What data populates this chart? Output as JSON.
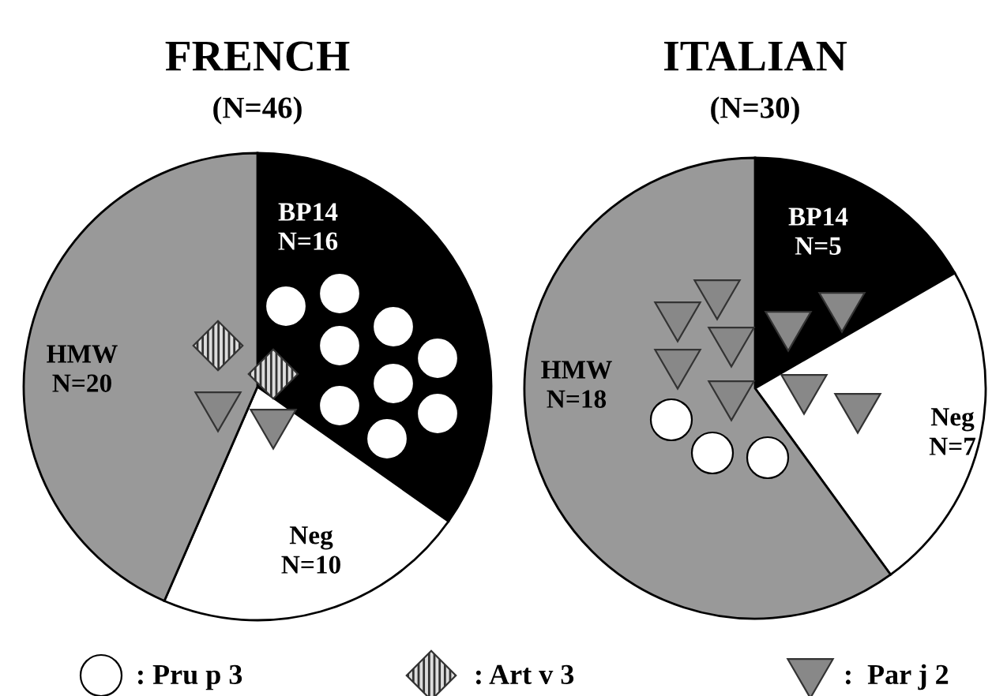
{
  "chart_data": [
    {
      "type": "pie",
      "title": "FRENCH",
      "subtitle": "(N=46)",
      "categories": [
        "BP14",
        "Neg",
        "HMW"
      ],
      "values": [
        16,
        10,
        20
      ],
      "colors": [
        "#000000",
        "#ffffff",
        "#999999"
      ],
      "value_labels": [
        "N=16",
        "N=10",
        "N=20"
      ]
    },
    {
      "type": "pie",
      "title": "ITALIAN",
      "subtitle": "(N=30)",
      "categories": [
        "BP14",
        "Neg",
        "HMW"
      ],
      "values": [
        5,
        7,
        18
      ],
      "colors": [
        "#000000",
        "#ffffff",
        "#999999"
      ],
      "value_labels": [
        "N=5",
        "N=7",
        "N=18"
      ]
    },
    {
      "type": "other",
      "annotations": [
        ": Pru p 3",
        ": Art v 3",
        ":  Par j 2"
      ]
    }
  ]
}
